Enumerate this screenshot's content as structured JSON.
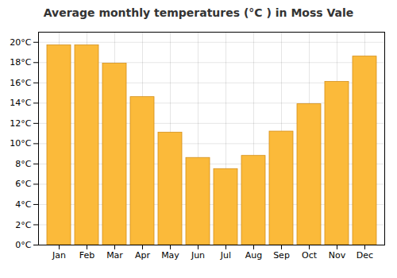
{
  "chart_data": {
    "type": "bar",
    "title": "Average monthly temperatures (°C ) in Moss Vale",
    "categories": [
      "Jan",
      "Feb",
      "Mar",
      "Apr",
      "May",
      "Jun",
      "Jul",
      "Aug",
      "Sep",
      "Oct",
      "Nov",
      "Dec"
    ],
    "values": [
      19.7,
      19.7,
      17.9,
      14.6,
      11.1,
      8.6,
      7.5,
      8.8,
      11.2,
      13.9,
      16.1,
      18.6
    ],
    "color": "#FBBA3A",
    "ylim": [
      0,
      21
    ],
    "yticks": [
      {
        "value": 0,
        "label": "0°C"
      },
      {
        "value": 2,
        "label": "2°C"
      },
      {
        "value": 4,
        "label": "4°C"
      },
      {
        "value": 6,
        "label": "6°C"
      },
      {
        "value": 8,
        "label": "8°C"
      },
      {
        "value": 10,
        "label": "10°C"
      },
      {
        "value": 12,
        "label": "12°C"
      },
      {
        "value": 14,
        "label": "14°C"
      },
      {
        "value": 16,
        "label": "16°C"
      },
      {
        "value": 18,
        "label": "18°C"
      },
      {
        "value": 20,
        "label": "20°C"
      }
    ],
    "grid": true
  }
}
